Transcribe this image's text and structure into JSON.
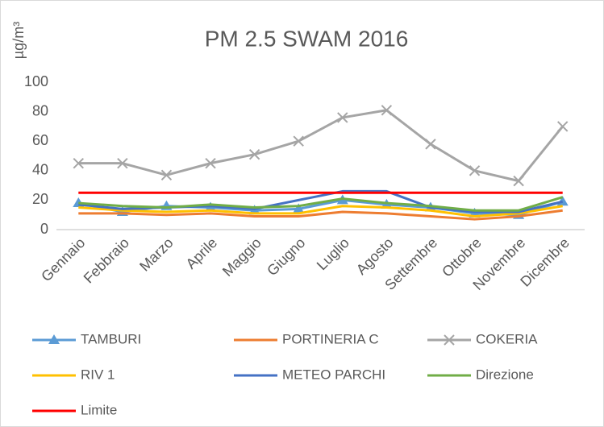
{
  "chart_data": {
    "type": "line",
    "title": "PM 2.5 SWAM 2016",
    "y_label": "µg/m³",
    "categories": [
      "Gennaio",
      "Febbraio",
      "Marzo",
      "Aprile",
      "Maggio",
      "Giugno",
      "Luglio",
      "Agosto",
      "Settembre",
      "Ottobre",
      "Novembre",
      "Dicembre"
    ],
    "series": [
      {
        "name": "TAMBURI",
        "color": "#5b9bd5",
        "marker": "triangle",
        "values": [
          18,
          12,
          16,
          15,
          13,
          14,
          20,
          17,
          15,
          11,
          10,
          19
        ]
      },
      {
        "name": "PORTINERIA C",
        "color": "#ed7d31",
        "values": [
          11,
          11,
          10,
          11,
          9,
          9,
          12,
          11,
          9,
          7,
          9,
          13
        ]
      },
      {
        "name": "COKERIA",
        "color": "#a5a5a5",
        "marker": "x",
        "values": [
          45,
          45,
          37,
          45,
          51,
          60,
          76,
          81,
          58,
          40,
          33,
          70
        ]
      },
      {
        "name": "RIV 1",
        "color": "#ffc000",
        "values": [
          15,
          13,
          12,
          13,
          11,
          11,
          16,
          15,
          13,
          9,
          11,
          16
        ]
      },
      {
        "name": "METEO PARCHI",
        "color": "#4472c4",
        "values": [
          17,
          14,
          15,
          16,
          14,
          20,
          26,
          26,
          15,
          12,
          12,
          19
        ]
      },
      {
        "name": "Direzione",
        "color": "#70ad47",
        "values": [
          18,
          16,
          15,
          17,
          15,
          16,
          21,
          18,
          16,
          13,
          13,
          22
        ]
      },
      {
        "name": "Limite",
        "color": "#ff0000",
        "values": [
          25,
          25,
          25,
          25,
          25,
          25,
          25,
          25,
          25,
          25,
          25,
          25
        ]
      }
    ],
    "ylim": [
      0,
      100
    ],
    "yticks": [
      0,
      20,
      40,
      60,
      80,
      100
    ],
    "grid": false
  }
}
